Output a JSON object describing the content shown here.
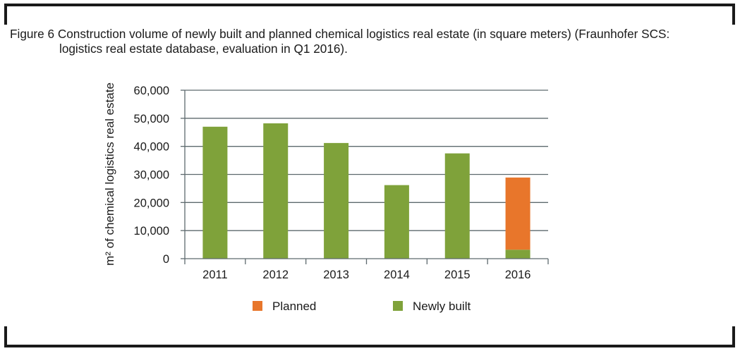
{
  "caption": {
    "line1": "Figure 6 Construction volume of newly built and planned chemical logistics real estate (in square meters) (Fraunhofer SCS:",
    "line2": "logistics real estate database, evaluation in Q1 2016)."
  },
  "colors": {
    "newly_built": "#7fa23a",
    "planned": "#e8762b",
    "grid": "#5e6a6e",
    "frame": "#1a1a1a"
  },
  "chart_data": {
    "type": "bar",
    "stacked": true,
    "categories": [
      "2011",
      "2012",
      "2013",
      "2014",
      "2015",
      "2016"
    ],
    "series": [
      {
        "name": "Newly built",
        "values": [
          47000,
          48200,
          41200,
          26200,
          37500,
          3200
        ]
      },
      {
        "name": "Planned",
        "values": [
          0,
          0,
          0,
          0,
          0,
          25700
        ]
      }
    ],
    "ylabel": "m² of chemical logistics real estate",
    "xlabel": "",
    "ylim": [
      0,
      60000
    ],
    "yticks": [
      0,
      10000,
      20000,
      30000,
      40000,
      50000,
      60000
    ],
    "ytick_labels": [
      "0",
      "10,000",
      "20,000",
      "30,000",
      "40,000",
      "50,000",
      "60,000"
    ],
    "grid": true,
    "legend": {
      "position": "bottom",
      "entries": [
        "Planned",
        "Newly built"
      ]
    }
  }
}
